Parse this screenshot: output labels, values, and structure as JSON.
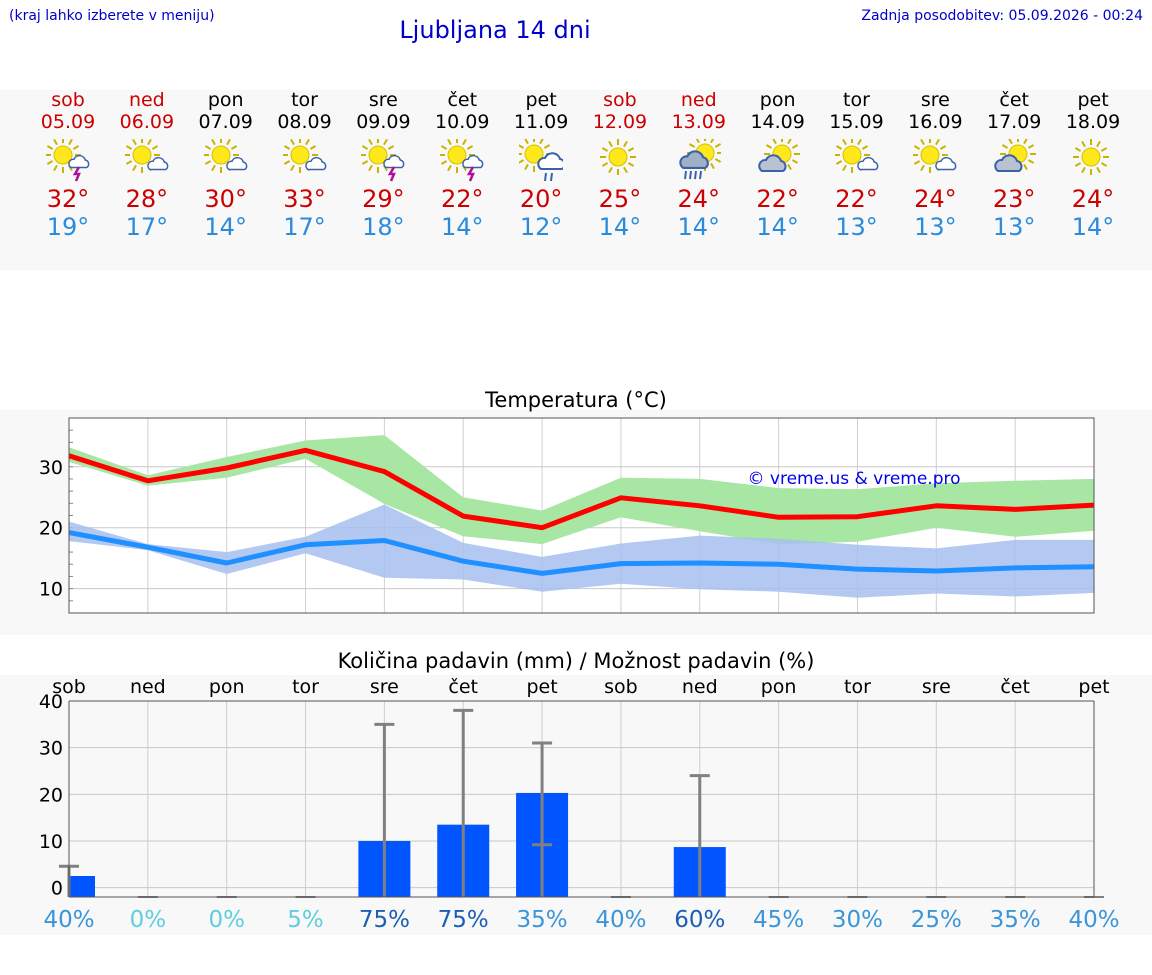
{
  "header": {
    "hint": "(kraj lahko izberete v meniju)",
    "title": "Ljubljana 14 dni",
    "updated": "Zadnja posodobitev: 05.09.2026 - 00:24"
  },
  "days": [
    {
      "name": "sob",
      "date": "05.09",
      "weekend": true,
      "icon": "sun-storm",
      "tmax": "32°",
      "tmin": "19°"
    },
    {
      "name": "ned",
      "date": "06.09",
      "weekend": true,
      "icon": "sun-cloud",
      "tmax": "28°",
      "tmin": "17°"
    },
    {
      "name": "pon",
      "date": "07.09",
      "weekend": false,
      "icon": "sun-cloud",
      "tmax": "30°",
      "tmin": "14°"
    },
    {
      "name": "tor",
      "date": "08.09",
      "weekend": false,
      "icon": "sun-cloud",
      "tmax": "33°",
      "tmin": "17°"
    },
    {
      "name": "sre",
      "date": "09.09",
      "weekend": false,
      "icon": "sun-storm",
      "tmax": "29°",
      "tmin": "18°"
    },
    {
      "name": "čet",
      "date": "10.09",
      "weekend": false,
      "icon": "sun-storm",
      "tmax": "22°",
      "tmin": "14°"
    },
    {
      "name": "pet",
      "date": "11.09",
      "weekend": false,
      "icon": "sun-rain",
      "tmax": "20°",
      "tmin": "12°"
    },
    {
      "name": "sob",
      "date": "12.09",
      "weekend": true,
      "icon": "sun",
      "tmax": "25°",
      "tmin": "14°"
    },
    {
      "name": "ned",
      "date": "13.09",
      "weekend": true,
      "icon": "cloud-rain-sun",
      "tmax": "24°",
      "tmin": "14°"
    },
    {
      "name": "pon",
      "date": "14.09",
      "weekend": false,
      "icon": "cloud-sun",
      "tmax": "22°",
      "tmin": "14°"
    },
    {
      "name": "tor",
      "date": "15.09",
      "weekend": false,
      "icon": "sun-cloud",
      "tmax": "22°",
      "tmin": "13°"
    },
    {
      "name": "sre",
      "date": "16.09",
      "weekend": false,
      "icon": "sun-cloud",
      "tmax": "24°",
      "tmin": "13°"
    },
    {
      "name": "čet",
      "date": "17.09",
      "weekend": false,
      "icon": "cloud-sun",
      "tmax": "23°",
      "tmin": "13°"
    },
    {
      "name": "pet",
      "date": "18.09",
      "weekend": false,
      "icon": "sun",
      "tmax": "24°",
      "tmin": "14°"
    }
  ],
  "chart_data": [
    {
      "type": "line",
      "title": "Temperatura (°C)",
      "watermark": "© vreme.us & vreme.pro",
      "ylim": [
        6,
        38
      ],
      "yticks": [
        10,
        20,
        30
      ],
      "grid": true,
      "colors": {
        "max": "#ff0000",
        "max_band": "#a8e6a3",
        "min": "#1e90ff",
        "min_band": "#a6bff0"
      },
      "series": [
        {
          "values": [
            31.8,
            27.7,
            29.8,
            32.7,
            29.2,
            21.9,
            20.0,
            24.9,
            23.6,
            21.7,
            21.8,
            23.6,
            23.0,
            23.7
          ]
        },
        {
          "values": [
            19.2,
            16.8,
            14.2,
            17.2,
            17.9,
            14.5,
            12.5,
            14.1,
            14.2,
            14.0,
            13.2,
            12.9,
            13.4,
            13.6
          ]
        }
      ],
      "bands": [
        {
          "upper": [
            33.2,
            28.6,
            31.6,
            34.3,
            35.2,
            25.0,
            22.8,
            28.2,
            28.0,
            26.5,
            26.3,
            27.3,
            27.7,
            28.0
          ],
          "lower": [
            30.8,
            26.9,
            28.2,
            31.3,
            23.9,
            18.6,
            17.3,
            21.7,
            19.4,
            17.3,
            17.7,
            20.0,
            18.5,
            19.5
          ]
        },
        {
          "upper": [
            21.0,
            17.3,
            16.0,
            18.5,
            23.8,
            17.5,
            15.2,
            17.4,
            18.7,
            18.2,
            17.2,
            16.6,
            18.0,
            18.0
          ],
          "lower": [
            17.8,
            16.3,
            12.4,
            15.8,
            11.8,
            11.5,
            9.5,
            10.8,
            9.9,
            9.5,
            8.5,
            9.2,
            8.7,
            9.3
          ]
        }
      ]
    },
    {
      "type": "bar",
      "title": "Količina padavin (mm) / Možnost padavin (%)",
      "ylim": [
        -2,
        40
      ],
      "yticks": [
        0,
        10,
        20,
        30,
        40
      ],
      "grid": true,
      "categories": [
        "sob",
        "ned",
        "pon",
        "tor",
        "sre",
        "čet",
        "pet",
        "sob",
        "ned",
        "pon",
        "tor",
        "sre",
        "čet",
        "pet"
      ],
      "values": [
        2.5,
        0,
        0,
        0,
        10,
        13.5,
        20.3,
        0,
        8.7,
        0,
        0,
        0,
        0,
        0
      ],
      "error_upper": [
        4.6,
        0,
        0,
        0,
        35,
        38,
        31,
        0,
        24,
        0,
        0,
        0,
        0,
        0
      ],
      "error_lower": [
        0,
        0,
        0,
        0,
        0,
        0,
        9.2,
        0,
        0,
        0,
        0,
        0,
        0,
        0
      ],
      "probability": [
        "40%",
        "0%",
        "0%",
        "5%",
        "75%",
        "75%",
        "35%",
        "40%",
        "60%",
        "45%",
        "30%",
        "25%",
        "35%",
        "40%"
      ],
      "probability_values": [
        40,
        0,
        0,
        5,
        75,
        75,
        35,
        40,
        60,
        45,
        30,
        25,
        35,
        40
      ],
      "colors": {
        "bar": "#0055ff",
        "error": "#808080"
      }
    }
  ]
}
